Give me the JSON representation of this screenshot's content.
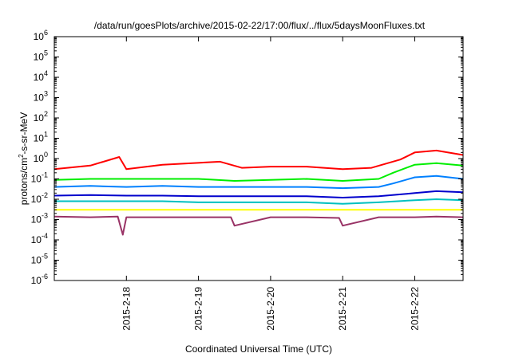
{
  "chart_data": {
    "type": "line",
    "title": "/data/run/goesPlots/archive/2015-02-22/17:00/flux/../flux/5daysMoonFluxes.txt",
    "xlabel": "Coordinated Universal Time (UTC)",
    "ylabel": "protons/cm2-s-sr-MeV",
    "ylabel_parts": {
      "base": "protons/cm",
      "sup": "2",
      "rest": "-s-sr-MeV"
    },
    "yscale": "log",
    "ylim_exponents": [
      -6,
      6
    ],
    "y_tick_exponents": [
      -6,
      -5,
      -4,
      -3,
      -2,
      -1,
      0,
      1,
      2,
      3,
      4,
      5,
      6
    ],
    "y_tick_base": "10",
    "xlim": [
      17.0,
      22.67
    ],
    "x_ticks": [
      {
        "x": 18,
        "label": "2015-2-18"
      },
      {
        "x": 19,
        "label": "2015-2-19"
      },
      {
        "x": 20,
        "label": "2015-2-20"
      },
      {
        "x": 21,
        "label": "2015-2-21"
      },
      {
        "x": 22,
        "label": "2015-2-22"
      }
    ],
    "grid": false,
    "legend": "none",
    "series": [
      {
        "color": "#ff0000",
        "x": [
          17.0,
          17.5,
          17.9,
          18.0,
          18.5,
          19.3,
          19.6,
          20.0,
          20.5,
          21.0,
          21.4,
          21.8,
          22.0,
          22.3,
          22.67
        ],
        "y": [
          0.3,
          0.45,
          1.2,
          0.3,
          0.5,
          0.7,
          0.35,
          0.4,
          0.4,
          0.3,
          0.35,
          0.9,
          2.0,
          2.5,
          1.5
        ]
      },
      {
        "color": "#00ee00",
        "x": [
          17.0,
          17.5,
          18.0,
          18.5,
          19.0,
          19.5,
          20.0,
          20.5,
          21.0,
          21.5,
          21.7,
          22.0,
          22.3,
          22.67
        ],
        "y": [
          0.09,
          0.1,
          0.1,
          0.1,
          0.1,
          0.08,
          0.09,
          0.1,
          0.08,
          0.1,
          0.2,
          0.5,
          0.6,
          0.45
        ]
      },
      {
        "color": "#0080ff",
        "x": [
          17.0,
          17.5,
          18.0,
          18.5,
          19.0,
          19.5,
          20.0,
          20.5,
          21.0,
          21.5,
          21.7,
          22.0,
          22.3,
          22.67
        ],
        "y": [
          0.04,
          0.045,
          0.04,
          0.045,
          0.04,
          0.04,
          0.04,
          0.04,
          0.035,
          0.04,
          0.06,
          0.12,
          0.14,
          0.1
        ]
      },
      {
        "color": "#0000cc",
        "x": [
          17.0,
          17.5,
          18.0,
          18.5,
          19.0,
          19.5,
          20.0,
          20.5,
          21.0,
          21.5,
          22.0,
          22.3,
          22.67
        ],
        "y": [
          0.015,
          0.016,
          0.015,
          0.015,
          0.014,
          0.014,
          0.014,
          0.014,
          0.012,
          0.014,
          0.02,
          0.025,
          0.022
        ]
      },
      {
        "color": "#00c0c0",
        "x": [
          17.0,
          17.5,
          18.0,
          18.5,
          19.0,
          19.5,
          20.0,
          20.5,
          21.0,
          21.5,
          22.0,
          22.3,
          22.67
        ],
        "y": [
          0.008,
          0.008,
          0.008,
          0.008,
          0.007,
          0.007,
          0.007,
          0.007,
          0.006,
          0.007,
          0.009,
          0.01,
          0.009
        ]
      },
      {
        "color": "#ffff00",
        "x": [
          17.0,
          17.5,
          18.0,
          18.5,
          19.0,
          19.5,
          20.0,
          20.5,
          21.0,
          21.5,
          22.0,
          22.3,
          22.67
        ],
        "y": [
          0.003,
          0.003,
          0.003,
          0.003,
          0.003,
          0.003,
          0.003,
          0.003,
          0.003,
          0.003,
          0.003,
          0.003,
          0.003
        ]
      },
      {
        "color": "#993366",
        "x": [
          17.0,
          17.5,
          17.88,
          17.95,
          18.0,
          18.5,
          19.0,
          19.45,
          19.5,
          20.0,
          20.5,
          20.95,
          21.0,
          21.5,
          22.0,
          22.3,
          22.67
        ],
        "y": [
          0.0014,
          0.0013,
          0.0014,
          0.00018,
          0.0013,
          0.0013,
          0.0013,
          0.0013,
          0.0005,
          0.0013,
          0.0013,
          0.0012,
          0.0005,
          0.0013,
          0.0013,
          0.0014,
          0.0013
        ]
      }
    ]
  }
}
